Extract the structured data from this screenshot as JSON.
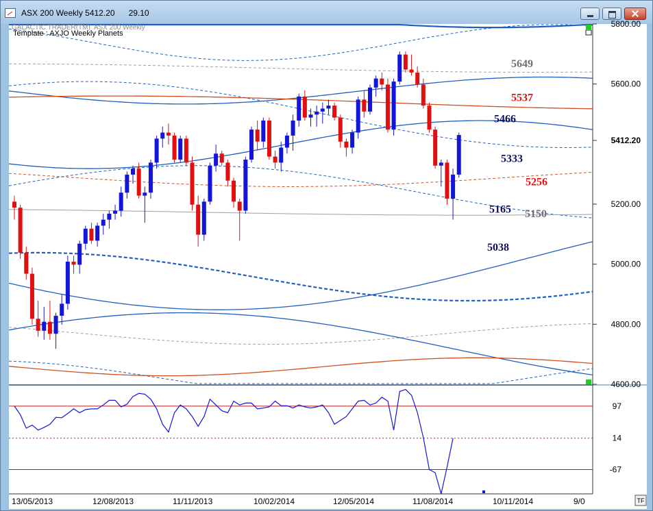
{
  "window": {
    "title": "ASX 200 Weekly 5412.20",
    "title_change": "29.10"
  },
  "header": {
    "brand": "GALACTIC TRADER(TM)",
    "instrument": "ASX 200 Weekly",
    "template": "Template : AXJO Weekly Planets"
  },
  "badge": "TF",
  "colors": {
    "bull": "#1515d8",
    "bear": "#e01010",
    "blue_line": "#1f5fbf",
    "red_line": "#d05020",
    "gray_line": "#a0a0a0",
    "plot_bg": "#ffffff",
    "frame": "#5f7f9f"
  },
  "chart_data": [
    {
      "type": "candlestick",
      "title": "ASX 200 Weekly",
      "ylim": [
        4600,
        5800
      ],
      "y_ticks": [
        "5800.00",
        "5600.00",
        "5412.20",
        "5200.00",
        "5000.00",
        "4800.00",
        "4600.00"
      ],
      "x_ticks": [
        "13/05/2013",
        "12/08/2013",
        "11/11/2013",
        "10/02/2014",
        "12/05/2014",
        "11/08/2014",
        "10/11/2014",
        "9/0"
      ],
      "last_value": "5412.20",
      "candles": [
        [
          5190,
          5210,
          5130,
          5170
        ],
        [
          5170,
          5180,
          5000,
          5020
        ],
        [
          5020,
          5040,
          4930,
          4950
        ],
        [
          4950,
          4970,
          4780,
          4800
        ],
        [
          4800,
          4860,
          4740,
          4760
        ],
        [
          4760,
          4840,
          4730,
          4790
        ],
        [
          4790,
          4860,
          4730,
          4750
        ],
        [
          4750,
          4820,
          4700,
          4810
        ],
        [
          4810,
          4880,
          4780,
          4850
        ],
        [
          4850,
          5010,
          4830,
          4990
        ],
        [
          4990,
          5010,
          4950,
          4980
        ],
        [
          4980,
          5060,
          4950,
          5050
        ],
        [
          5050,
          5110,
          5030,
          5100
        ],
        [
          5100,
          5120,
          5050,
          5060
        ],
        [
          5060,
          5120,
          5040,
          5110
        ],
        [
          5110,
          5150,
          5080,
          5130
        ],
        [
          5130,
          5160,
          5100,
          5150
        ],
        [
          5150,
          5180,
          5130,
          5160
        ],
        [
          5160,
          5240,
          5140,
          5220
        ],
        [
          5220,
          5290,
          5200,
          5280
        ],
        [
          5280,
          5310,
          5250,
          5300
        ],
        [
          5300,
          5320,
          5200,
          5210
        ],
        [
          5210,
          5240,
          5120,
          5220
        ],
        [
          5220,
          5330,
          5200,
          5320
        ],
        [
          5320,
          5410,
          5300,
          5400
        ],
        [
          5400,
          5440,
          5370,
          5420
        ],
        [
          5420,
          5450,
          5380,
          5410
        ],
        [
          5410,
          5420,
          5320,
          5330
        ],
        [
          5330,
          5410,
          5320,
          5400
        ],
        [
          5400,
          5410,
          5310,
          5320
        ],
        [
          5320,
          5340,
          5160,
          5180
        ],
        [
          5180,
          5210,
          5040,
          5080
        ],
        [
          5080,
          5200,
          5060,
          5190
        ],
        [
          5190,
          5320,
          5180,
          5310
        ],
        [
          5310,
          5380,
          5290,
          5350
        ],
        [
          5350,
          5360,
          5310,
          5320
        ],
        [
          5320,
          5330,
          5240,
          5260
        ],
        [
          5260,
          5270,
          5170,
          5190
        ],
        [
          5190,
          5200,
          5060,
          5160
        ],
        [
          5160,
          5340,
          5150,
          5330
        ],
        [
          5330,
          5440,
          5320,
          5430
        ],
        [
          5430,
          5460,
          5360,
          5390
        ],
        [
          5390,
          5470,
          5370,
          5460
        ],
        [
          5460,
          5470,
          5330,
          5340
        ],
        [
          5340,
          5360,
          5300,
          5320
        ],
        [
          5320,
          5390,
          5290,
          5370
        ],
        [
          5370,
          5420,
          5350,
          5410
        ],
        [
          5410,
          5480,
          5360,
          5460
        ],
        [
          5460,
          5550,
          5440,
          5540
        ],
        [
          5540,
          5560,
          5460,
          5470
        ],
        [
          5470,
          5500,
          5440,
          5480
        ],
        [
          5480,
          5510,
          5440,
          5490
        ],
        [
          5490,
          5520,
          5450,
          5500
        ],
        [
          5500,
          5530,
          5480,
          5510
        ],
        [
          5510,
          5520,
          5460,
          5470
        ],
        [
          5470,
          5480,
          5370,
          5390
        ],
        [
          5390,
          5400,
          5340,
          5370
        ],
        [
          5370,
          5430,
          5350,
          5420
        ],
        [
          5420,
          5540,
          5400,
          5530
        ],
        [
          5530,
          5560,
          5470,
          5490
        ],
        [
          5490,
          5580,
          5480,
          5570
        ],
        [
          5570,
          5610,
          5540,
          5600
        ],
        [
          5600,
          5620,
          5560,
          5580
        ],
        [
          5580,
          5600,
          5420,
          5430
        ],
        [
          5430,
          5600,
          5410,
          5590
        ],
        [
          5590,
          5690,
          5580,
          5680
        ],
        [
          5680,
          5690,
          5620,
          5630
        ],
        [
          5630,
          5680,
          5610,
          5620
        ],
        [
          5620,
          5640,
          5570,
          5580
        ],
        [
          5580,
          5600,
          5500,
          5510
        ],
        [
          5510,
          5520,
          5420,
          5430
        ],
        [
          5430,
          5440,
          5300,
          5310
        ],
        [
          5310,
          5330,
          5240,
          5320
        ],
        [
          5320,
          5330,
          5180,
          5200
        ],
        [
          5200,
          5300,
          5130,
          5280
        ],
        [
          5280,
          5420,
          5270,
          5412
        ]
      ],
      "levels": [
        {
          "label": "5649",
          "value": 5649,
          "color": "#707070"
        },
        {
          "label": "5537",
          "value": 5537,
          "color": "#e01010"
        },
        {
          "label": "5466",
          "value": 5466,
          "color": "#10105a"
        },
        {
          "label": "5333",
          "value": 5333,
          "color": "#10105a"
        },
        {
          "label": "5256",
          "value": 5256,
          "color": "#e01010"
        },
        {
          "label": "5165",
          "value": 5165,
          "color": "#10105a"
        },
        {
          "label": "5150",
          "value": 5150,
          "color": "#707070"
        },
        {
          "label": "5038",
          "value": 5038,
          "color": "#10105a"
        }
      ]
    },
    {
      "type": "line",
      "title": "",
      "ylim": [
        -130,
        150
      ],
      "y_ticks": [
        "97",
        "14",
        "-67"
      ],
      "reference_lines": [
        97,
        14,
        -67
      ],
      "values": [
        97,
        75,
        40,
        48,
        35,
        42,
        50,
        68,
        67,
        78,
        90,
        80,
        88,
        90,
        90,
        100,
        112,
        112,
        95,
        102,
        122,
        130,
        128,
        115,
        90,
        50,
        30,
        80,
        100,
        90,
        70,
        45,
        70,
        115,
        100,
        85,
        80,
        110,
        100,
        105,
        105,
        90,
        92,
        95,
        110,
        98,
        98,
        92,
        100,
        95,
        92,
        95,
        100,
        80,
        50,
        60,
        70,
        90,
        110,
        112,
        100,
        105,
        120,
        110,
        35,
        135,
        140,
        125,
        80,
        15,
        -67,
        -75,
        -130,
        -60,
        14
      ]
    }
  ]
}
